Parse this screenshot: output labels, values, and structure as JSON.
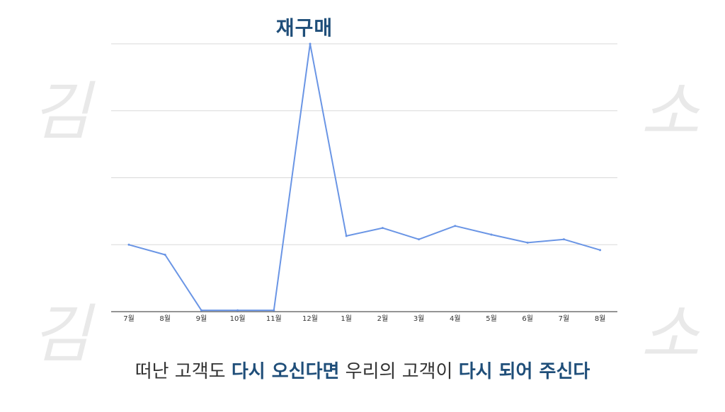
{
  "chart_data": {
    "type": "line",
    "title": "재구매",
    "categories": [
      "7월",
      "8월",
      "9월",
      "10월",
      "11월",
      "12월",
      "1월",
      "2월",
      "3월",
      "4월",
      "5월",
      "6월",
      "7월",
      "8월"
    ],
    "values": [
      1.0,
      0.85,
      0.02,
      0.02,
      0.02,
      4.0,
      1.13,
      1.25,
      1.08,
      1.28,
      1.15,
      1.03,
      1.08,
      0.92
    ],
    "ylim": [
      0,
      4
    ],
    "gridlines": true,
    "line_color": "#6a95e5",
    "xlabel": "",
    "ylabel": ""
  },
  "caption": {
    "part1": "떠난 고객도 ",
    "part2": "다시 오신다면",
    "part3": " 우리의 고객이 ",
    "part4": "다시 되어 주신다"
  },
  "watermarks": {
    "left_top": "김",
    "right_top": "소",
    "left_bottom": "김",
    "right_bottom": "소"
  }
}
